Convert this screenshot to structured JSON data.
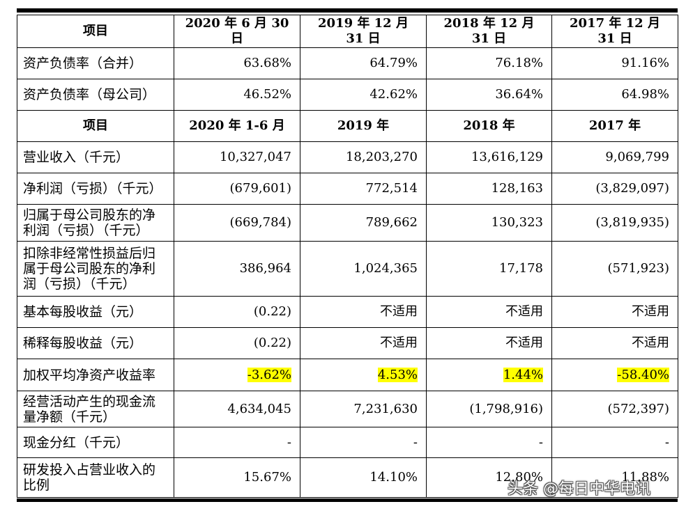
{
  "header_row_1": [
    "项目",
    "2020 年 6 月 30 日",
    "2019 年 12 月 31 日",
    "2018 年 12 月 31 日",
    "2017 年 12 月 31 日"
  ],
  "rows_1": [
    {
      "label": "资产负债率（合并）",
      "values": [
        "63.68%",
        "64.79%",
        "76.18%",
        "91.16%"
      ]
    },
    {
      "label": "资产负债率（母公司）",
      "values": [
        "46.52%",
        "42.62%",
        "36.64%",
        "64.98%"
      ]
    }
  ],
  "header_row_2": [
    "项目",
    "2020 年 1-6 月",
    "2019 年",
    "2018 年",
    "2017 年"
  ],
  "rows_2": [
    {
      "label": "营业收入（千元）",
      "values": [
        "10,327,047",
        "18,203,270",
        "13,616,129",
        "9,069,799"
      ]
    },
    {
      "label": "净利润（亏损）（千元）",
      "values": [
        "(679,601)",
        "772,514",
        "128,163",
        "(3,829,097)"
      ]
    },
    {
      "label": "归属于母公司股东的净利润（亏损）（千元）",
      "values": [
        "(669,784)",
        "789,662",
        "130,323",
        "(3,819,935)"
      ]
    },
    {
      "label": "扣除非经常性损益后归属于母公司股东的净利润（亏损）（千元）",
      "values": [
        "386,964",
        "1,024,365",
        "17,178",
        "(571,923)"
      ]
    },
    {
      "label": "基本每股收益（元）",
      "values": [
        "(0.22)",
        "不适用",
        "不适用",
        "不适用"
      ]
    },
    {
      "label": "稀释每股收益（元）",
      "values": [
        "(0.22)",
        "不适用",
        "不适用",
        "不适用"
      ]
    },
    {
      "label": "加权平均净资产收益率",
      "values": [
        "-3.62%",
        "4.53%",
        "1.44%",
        "-58.40%"
      ],
      "highlight_color": "#ffff00"
    },
    {
      "label": "经营活动产生的现金流量净额（千元）",
      "values": [
        "4,634,045",
        "7,231,630",
        "(1,798,916)",
        "(572,397)"
      ]
    },
    {
      "label": "现金分红（千元）",
      "values": [
        "-",
        "-",
        "-",
        "-"
      ]
    },
    {
      "label": "研发投入占营业收入的比例",
      "values": [
        "15.67%",
        "14.10%",
        "12.80%",
        "11.88%"
      ]
    }
  ],
  "watermark": "头条 @每日中华电讯"
}
